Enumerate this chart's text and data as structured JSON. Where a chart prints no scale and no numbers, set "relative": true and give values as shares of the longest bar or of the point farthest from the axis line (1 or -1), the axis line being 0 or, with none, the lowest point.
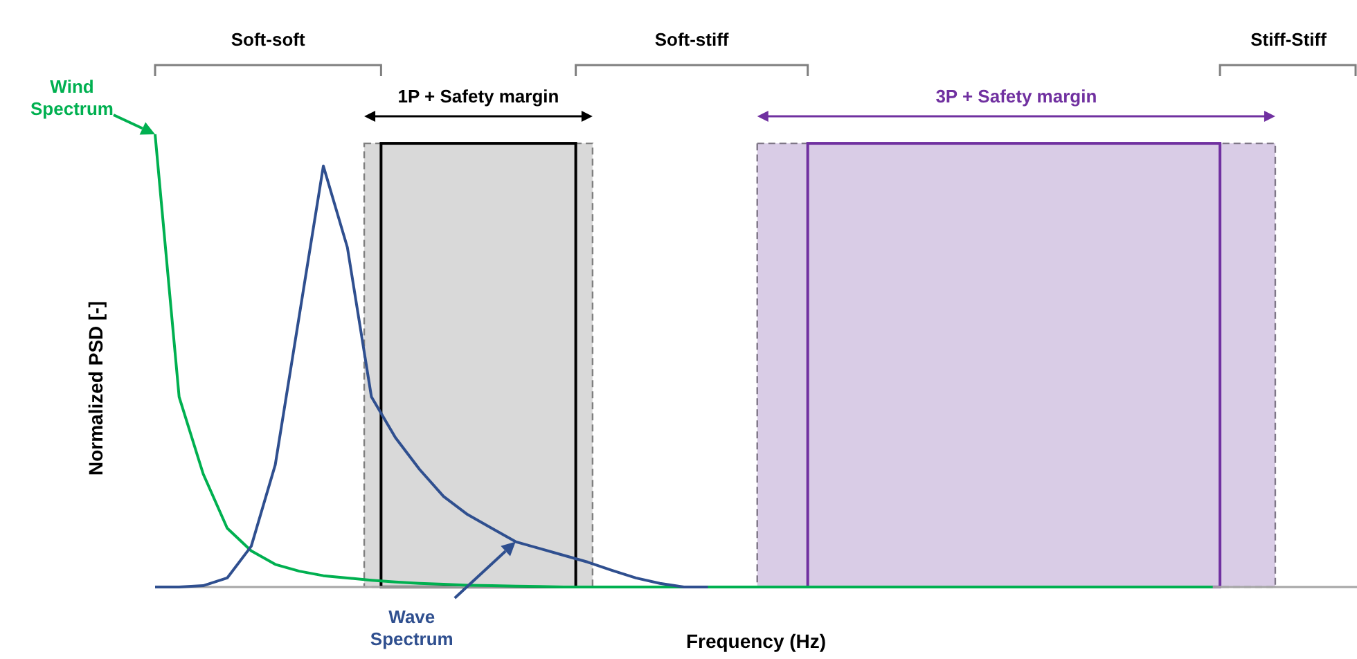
{
  "chart_data": {
    "type": "line",
    "relative": true,
    "marker": "none",
    "line_style": "solid",
    "xlabel": "Frequency (Hz)",
    "ylabel": "Normalized PSD [-]",
    "categories": [
      null,
      null,
      null,
      null,
      null,
      null,
      null,
      null,
      null,
      null,
      null,
      null,
      null,
      null,
      null,
      null,
      null,
      null,
      null,
      null,
      null,
      null,
      null,
      null,
      null,
      null,
      null,
      null,
      null,
      null,
      null,
      null,
      null,
      null,
      null,
      null,
      null,
      null,
      null,
      null,
      null,
      null,
      null,
      null,
      null,
      null,
      null,
      null,
      null,
      null,
      null
    ],
    "series": [
      {
        "color": "#00b050",
        "values": [
          1,
          0.42,
          0.25,
          0.13,
          0.08,
          0.05,
          0.035,
          0.025,
          0.02,
          0.015,
          0.011,
          0.008,
          0.006,
          0.004,
          0.003,
          0.002,
          0.001,
          0,
          0,
          0,
          0,
          0,
          0,
          0,
          0,
          0,
          0,
          0,
          0,
          0,
          0,
          0,
          0,
          0,
          0,
          0,
          0,
          0,
          0,
          0,
          0,
          0,
          0,
          0,
          0,
          null,
          null,
          null,
          null,
          null,
          null
        ]
      },
      {
        "color": "#2f4f8f",
        "values": [
          0,
          0,
          0.003,
          0.02,
          0.09,
          0.27,
          0.6,
          0.93,
          0.75,
          0.42,
          0.33,
          0.26,
          0.2,
          0.16,
          0.13,
          0.1,
          0.085,
          0.07,
          0.055,
          0.037,
          0.02,
          0.008,
          0,
          0,
          null,
          null,
          null,
          null,
          null,
          null,
          null,
          null,
          null,
          null,
          null,
          null,
          null,
          null,
          null,
          null,
          null,
          null,
          null,
          null,
          null,
          null,
          null,
          null,
          null,
          null,
          null
        ]
      }
    ],
    "annotations": [
      "Wind Spectrum",
      "Wave Spectrum",
      "1P + Safety margin",
      "3P + Safety margin",
      "Soft-soft",
      "Soft-stiff",
      "Stiff-Stiff"
    ]
  }
}
